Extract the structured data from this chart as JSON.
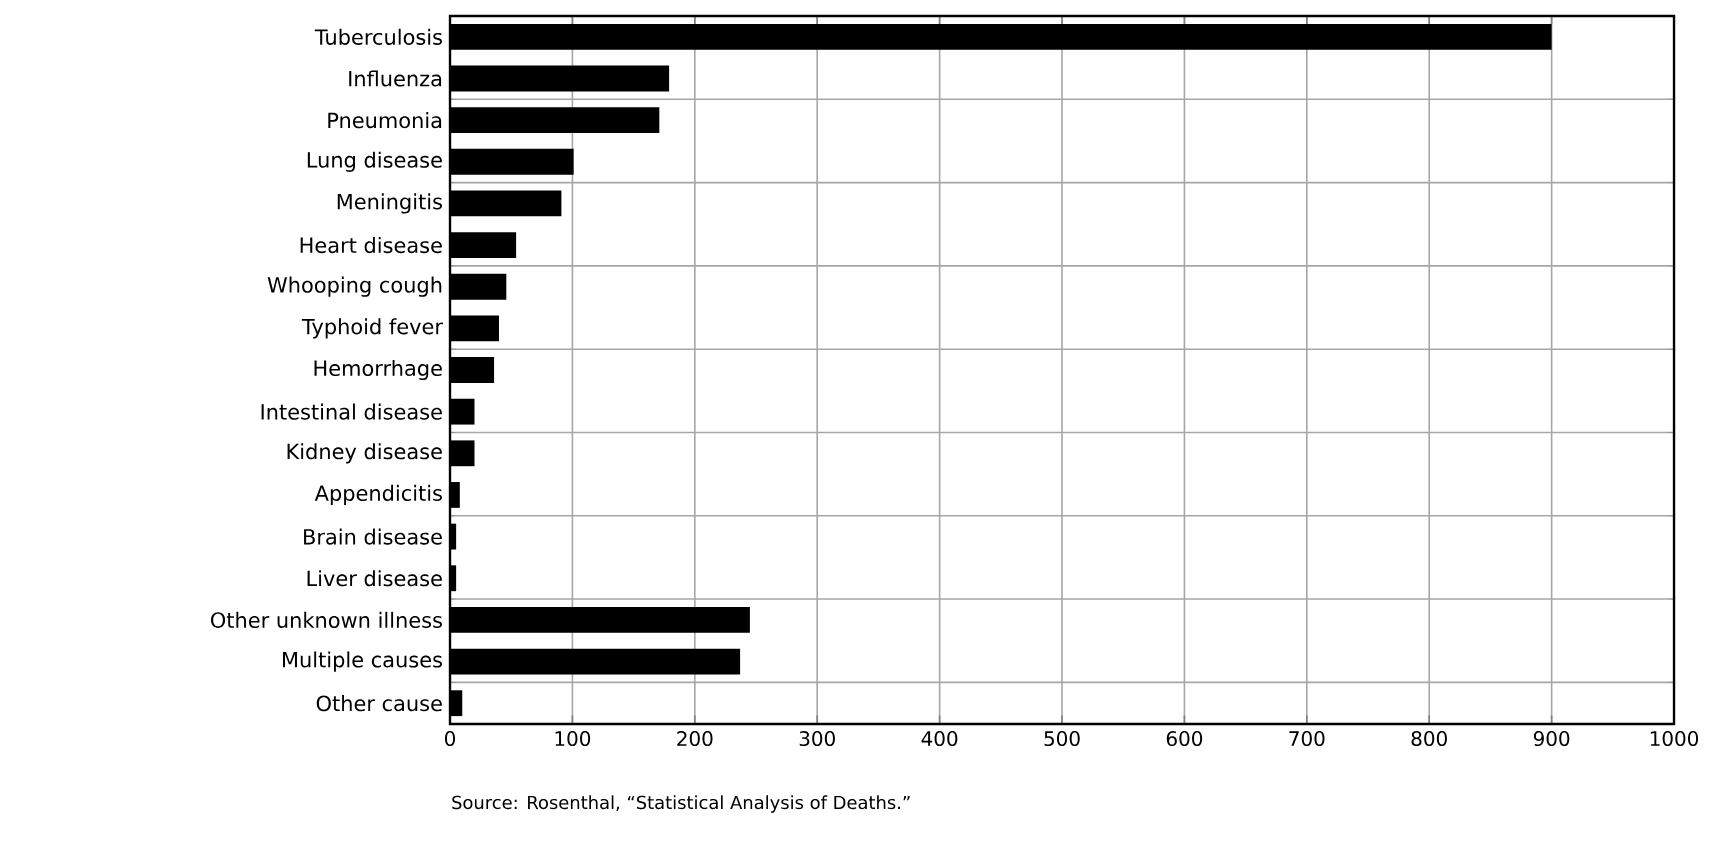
{
  "chart_data": {
    "type": "bar",
    "orientation": "horizontal",
    "categories": [
      "Tuberculosis",
      "Influenza",
      "Pneumonia",
      "Lung disease",
      "Meningitis",
      "Heart disease",
      "Whooping cough",
      "Typhoid fever",
      "Hemorrhage",
      "Intestinal disease",
      "Kidney disease",
      "Appendicitis",
      "Brain disease",
      "Liver disease",
      "Other unknown illness",
      "Multiple causes",
      "Other cause"
    ],
    "values": [
      900,
      179,
      171,
      101,
      91,
      54,
      46,
      40,
      36,
      20,
      20,
      8,
      5,
      5,
      245,
      237,
      10
    ],
    "color": "#000000",
    "xlim": [
      0,
      1000
    ],
    "xticks": [
      0,
      100,
      200,
      300,
      400,
      500,
      600,
      700,
      800,
      900,
      1000
    ],
    "grid": true,
    "annotations": [
      "Source: Rosenthal, “Statistical Analysis of Deaths.”"
    ]
  }
}
